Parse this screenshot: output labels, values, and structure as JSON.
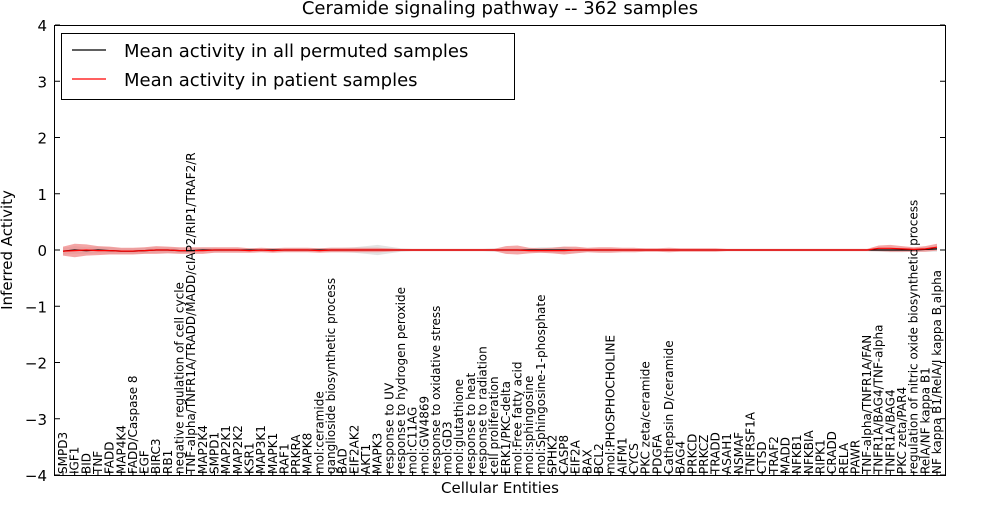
{
  "chart_data": {
    "type": "line",
    "title": "Ceramide signaling pathway -- 362 samples",
    "xlabel": "Cellular Entities",
    "ylabel": "Inferred Activity",
    "ylim": [
      -4,
      4
    ],
    "yticks": [
      "4",
      "3",
      "2",
      "1",
      "0",
      "−1",
      "−2",
      "−3",
      "−4"
    ],
    "grid": false,
    "legend_position": "top-left",
    "categories": [
      "SMPD3",
      "IGF1",
      "BID",
      "TNF",
      "FADD",
      "MAP4K4",
      "FADD/Caspase 8",
      "EGF",
      "BIRC3",
      "RB1",
      "negative regulation of cell cycle",
      "TNF-alpha/TNFR1A/TRADD/MADD/cIAP2/RIP1/TRAF2/R",
      "MAP2K4",
      "SMPD1",
      "MAP2K1",
      "MAP2K2",
      "KSR1",
      "MAP3K1",
      "MAPK1",
      "RAF1",
      "PRKRA",
      "MAPK8",
      "mol:ceramide",
      "ganglioside biosynthetic process",
      "BAD",
      "EIF2AK2",
      "AKT1",
      "MAPK3",
      "response to UV",
      "response to hydrogen peroxide",
      "mol:C11AG",
      "mol:GW4869",
      "response to oxidative stress",
      "mol:GD3",
      "mol:glutathione",
      "response to heat",
      "response to radiation",
      "cell proliferation",
      "ERK1/PKC-delta",
      "mol:Free fatty acid",
      "mol:sphingosine",
      "mol:Sphingosine-1-phosphate",
      "SPHK2",
      "CASP8",
      "EIF2A",
      "BAX",
      "BCL2",
      "mol:PHOSPHOCHOLINE",
      "AIFM1",
      "CYCS",
      "PKC zeta/ceramide",
      "PDGFA",
      "Cathepsin D/ceramide",
      "BAG4",
      "PRKCD",
      "PRKCZ",
      "TRADD",
      "ASAH1",
      "NSMAF",
      "TNFRSF1A",
      "CTSD",
      "TRAF2",
      "MADD",
      "NFKB1",
      "NFKBIA",
      "RIPK1",
      "CRADD",
      "RELA",
      "PAWR",
      "TNF-alpha/TNFR1A/FAN",
      "TNFR1A/BAG4/TNF-alpha",
      "TNFR1A/BAG4",
      "PKC zeta/PAR4",
      "regulation of nitric oxide biosynthetic process",
      "RelA/NF kappa B1",
      "NF kappa B1/RelA/I kappa B alpha"
    ],
    "series": [
      {
        "name": "Mean activity in all permuted samples",
        "color": "#000000",
        "values": [
          -0.02,
          0.0,
          -0.01,
          0.0,
          -0.01,
          -0.02,
          -0.02,
          -0.01,
          0.0,
          0.0,
          -0.01,
          -0.01,
          0.0,
          0.0,
          0.0,
          0.0,
          0.0,
          0.0,
          0.0,
          0.0,
          0.0,
          0.0,
          0.0,
          0.0,
          0.0,
          0.0,
          0.0,
          0.0,
          0.0,
          0.0,
          0.0,
          0.0,
          0.0,
          0.0,
          0.0,
          0.0,
          0.0,
          0.0,
          0.0,
          0.0,
          0.0,
          0.0,
          0.0,
          0.0,
          0.0,
          0.0,
          0.0,
          0.0,
          0.0,
          0.0,
          0.0,
          0.0,
          0.0,
          0.0,
          0.0,
          0.0,
          0.0,
          0.0,
          0.0,
          0.0,
          0.0,
          0.0,
          0.0,
          0.0,
          0.0,
          0.0,
          0.0,
          0.0,
          0.0,
          0.0,
          0.0,
          0.0,
          0.0,
          0.0,
          0.01,
          0.02
        ]
      },
      {
        "name": "Mean activity in patient samples",
        "color": "#ff0000",
        "values": [
          -0.02,
          -0.01,
          0.0,
          -0.01,
          -0.01,
          -0.02,
          -0.02,
          -0.01,
          0.0,
          0.0,
          -0.01,
          -0.01,
          -0.01,
          0.0,
          0.0,
          0.0,
          -0.01,
          0.0,
          -0.01,
          0.0,
          0.0,
          0.0,
          -0.01,
          0.0,
          0.0,
          0.0,
          0.0,
          0.0,
          0.0,
          0.0,
          0.0,
          0.0,
          0.0,
          0.0,
          0.0,
          0.0,
          0.0,
          0.0,
          0.0,
          0.0,
          -0.01,
          -0.01,
          -0.01,
          -0.01,
          0.0,
          0.0,
          0.0,
          0.0,
          0.0,
          0.0,
          0.0,
          0.0,
          0.0,
          0.0,
          0.0,
          0.0,
          0.0,
          0.0,
          0.0,
          0.0,
          0.0,
          0.0,
          0.0,
          0.0,
          0.0,
          0.0,
          0.0,
          0.0,
          0.0,
          0.0,
          0.03,
          0.03,
          0.02,
          0.01,
          0.02,
          0.05
        ]
      }
    ],
    "permuted_band": {
      "color": "#c8c8c8",
      "halfwidth": [
        0.06,
        0.07,
        0.06,
        0.06,
        0.06,
        0.05,
        0.05,
        0.05,
        0.05,
        0.05,
        0.04,
        0.04,
        0.04,
        0.04,
        0.03,
        0.03,
        0.03,
        0.03,
        0.03,
        0.03,
        0.03,
        0.03,
        0.03,
        0.04,
        0.04,
        0.05,
        0.07,
        0.09,
        0.06,
        0.03,
        0.02,
        0.02,
        0.02,
        0.02,
        0.02,
        0.02,
        0.02,
        0.03,
        0.03,
        0.03,
        0.03,
        0.05,
        0.05,
        0.06,
        0.04,
        0.03,
        0.03,
        0.03,
        0.02,
        0.02,
        0.02,
        0.02,
        0.02,
        0.02,
        0.02,
        0.02,
        0.02,
        0.02,
        0.02,
        0.02,
        0.02,
        0.02,
        0.02,
        0.02,
        0.02,
        0.02,
        0.02,
        0.02,
        0.02,
        0.02,
        0.03,
        0.04,
        0.04,
        0.03,
        0.04,
        0.05
      ]
    },
    "patient_band": {
      "color": "#f08080",
      "halfwidth": [
        0.08,
        0.12,
        0.1,
        0.08,
        0.07,
        0.06,
        0.06,
        0.06,
        0.07,
        0.06,
        0.06,
        0.06,
        0.06,
        0.05,
        0.05,
        0.05,
        0.04,
        0.04,
        0.04,
        0.04,
        0.04,
        0.04,
        0.04,
        0.04,
        0.04,
        0.04,
        0.04,
        0.04,
        0.03,
        0.02,
        0.02,
        0.02,
        0.02,
        0.02,
        0.02,
        0.02,
        0.02,
        0.02,
        0.07,
        0.08,
        0.05,
        0.04,
        0.05,
        0.07,
        0.06,
        0.04,
        0.05,
        0.05,
        0.04,
        0.04,
        0.03,
        0.03,
        0.04,
        0.03,
        0.03,
        0.03,
        0.03,
        0.02,
        0.02,
        0.02,
        0.02,
        0.02,
        0.02,
        0.02,
        0.02,
        0.02,
        0.02,
        0.02,
        0.02,
        0.02,
        0.05,
        0.06,
        0.05,
        0.04,
        0.05,
        0.06
      ]
    }
  }
}
